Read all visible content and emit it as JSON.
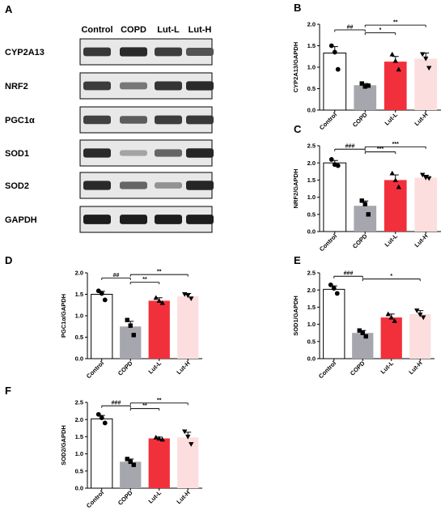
{
  "panel_a": {
    "letter": "A",
    "groups": [
      "Control",
      "COPD",
      "Lut-L",
      "Lut-H"
    ],
    "proteins": [
      {
        "label": "CYP2A13",
        "intensity": [
          0.8,
          0.88,
          0.78,
          0.65
        ]
      },
      {
        "label": "NRF2",
        "intensity": [
          0.78,
          0.45,
          0.82,
          0.88
        ]
      },
      {
        "label": "PGC1α",
        "intensity": [
          0.75,
          0.6,
          0.78,
          0.8
        ]
      },
      {
        "label": "SOD1",
        "intensity": [
          0.88,
          0.2,
          0.55,
          0.9
        ]
      },
      {
        "label": "SOD2",
        "intensity": [
          0.88,
          0.55,
          0.3,
          0.9
        ]
      },
      {
        "label": "GAPDH",
        "intensity": [
          0.95,
          0.95,
          0.95,
          0.95
        ]
      }
    ]
  },
  "chart_data": [
    {
      "type": "bar",
      "panel": "B",
      "categories": [
        "Control",
        "COPD",
        "Lut-L",
        "Lut-H"
      ],
      "values": [
        1.33,
        0.58,
        1.13,
        1.2
      ],
      "errors": [
        0.15,
        0.04,
        0.12,
        0.13
      ],
      "points": [
        [
          1.5,
          1.35,
          0.95
        ],
        [
          0.62,
          0.55,
          0.57
        ],
        [
          1.3,
          1.15,
          0.95
        ],
        [
          1.3,
          1.2,
          0.98
        ]
      ],
      "ylabel": "CYP2A13/GAPDH",
      "ylim": [
        0,
        2.0
      ],
      "yticks": [
        "0.0",
        "0.5",
        "1.0",
        "1.5",
        "2.0"
      ],
      "brackets": [
        {
          "from": 0,
          "to": 1,
          "label": "##",
          "y": 1.87
        },
        {
          "from": 1,
          "to": 2,
          "label": "*",
          "y": 1.8
        },
        {
          "from": 1,
          "to": 3,
          "label": "**",
          "y": 1.98
        }
      ]
    },
    {
      "type": "bar",
      "panel": "C",
      "categories": [
        "Control",
        "COPD",
        "Lut-L",
        "Lut-H"
      ],
      "values": [
        2.0,
        0.75,
        1.5,
        1.57
      ],
      "errors": [
        0.07,
        0.14,
        0.15,
        0.07
      ],
      "points": [
        [
          2.1,
          1.95,
          1.92
        ],
        [
          0.9,
          0.8,
          0.5
        ],
        [
          1.7,
          1.5,
          1.3
        ],
        [
          1.65,
          1.57,
          1.55
        ]
      ],
      "ylabel": "NRF2/GAPDH",
      "ylim": [
        0,
        2.5
      ],
      "yticks": [
        "0.0",
        "0.5",
        "1.0",
        "1.5",
        "2.0",
        "2.5"
      ],
      "brackets": [
        {
          "from": 0,
          "to": 1,
          "label": "###",
          "y": 2.4
        },
        {
          "from": 1,
          "to": 2,
          "label": "***",
          "y": 2.32
        },
        {
          "from": 1,
          "to": 3,
          "label": "***",
          "y": 2.47
        }
      ]
    },
    {
      "type": "bar",
      "panel": "D",
      "categories": [
        "Control",
        "COPD",
        "Lut-L",
        "Lut-H"
      ],
      "values": [
        1.5,
        0.75,
        1.35,
        1.45
      ],
      "errors": [
        0.07,
        0.12,
        0.07,
        0.07
      ],
      "points": [
        [
          1.58,
          1.52,
          1.37
        ],
        [
          0.9,
          0.77,
          0.55
        ],
        [
          1.42,
          1.35,
          1.3
        ],
        [
          1.5,
          1.47,
          1.4
        ]
      ],
      "ylabel": "PGC1α/GAPDH",
      "ylim": [
        0,
        2.0
      ],
      "yticks": [
        "0.0",
        "0.5",
        "1.0",
        "1.5",
        "2.0"
      ],
      "brackets": [
        {
          "from": 0,
          "to": 1,
          "label": "##",
          "y": 1.88
        },
        {
          "from": 1,
          "to": 2,
          "label": "**",
          "y": 1.78
        },
        {
          "from": 1,
          "to": 3,
          "label": "**",
          "y": 1.96
        }
      ]
    },
    {
      "type": "bar",
      "panel": "E",
      "categories": [
        "Control",
        "COPD",
        "Lut-L",
        "Lut-H"
      ],
      "values": [
        2.02,
        0.75,
        1.2,
        1.3
      ],
      "errors": [
        0.1,
        0.07,
        0.1,
        0.1
      ],
      "points": [
        [
          2.15,
          2.05,
          1.9
        ],
        [
          0.82,
          0.75,
          0.65
        ],
        [
          1.3,
          1.2,
          1.1
        ],
        [
          1.4,
          1.28,
          1.2
        ]
      ],
      "ylabel": "SOD1/GAPDH",
      "ylim": [
        0,
        2.5
      ],
      "yticks": [
        "0.0",
        "0.5",
        "1.0",
        "1.5",
        "2.0",
        "2.5"
      ],
      "brackets": [
        {
          "from": 0,
          "to": 1,
          "label": "###",
          "y": 2.4
        },
        {
          "from": 1,
          "to": 3,
          "label": "*",
          "y": 2.32
        }
      ]
    },
    {
      "type": "bar",
      "panel": "F",
      "categories": [
        "Control",
        "COPD",
        "Lut-L",
        "Lut-H"
      ],
      "values": [
        2.02,
        0.77,
        1.45,
        1.48
      ],
      "errors": [
        0.1,
        0.08,
        0.04,
        0.15
      ],
      "points": [
        [
          2.15,
          2.05,
          1.9
        ],
        [
          0.85,
          0.77,
          0.68
        ],
        [
          1.48,
          1.45,
          1.42
        ],
        [
          1.65,
          1.5,
          1.28
        ]
      ],
      "ylabel": "SOD2/GAPDH",
      "ylim": [
        0,
        2.5
      ],
      "yticks": [
        "0.0",
        "0.5",
        "1.0",
        "1.5",
        "2.0",
        "2.5"
      ],
      "brackets": [
        {
          "from": 0,
          "to": 1,
          "label": "###",
          "y": 2.4
        },
        {
          "from": 1,
          "to": 2,
          "label": "**",
          "y": 2.32
        },
        {
          "from": 1,
          "to": 3,
          "label": "**",
          "y": 2.48
        }
      ]
    }
  ],
  "colors": {
    "bars": [
      "#ffffff",
      "#a6a6ae",
      "#f2303c",
      "#fcdede"
    ],
    "axis": "#000000",
    "marker": "#000000"
  },
  "markers": [
    "circle",
    "square",
    "triangle",
    "inverted-triangle"
  ]
}
